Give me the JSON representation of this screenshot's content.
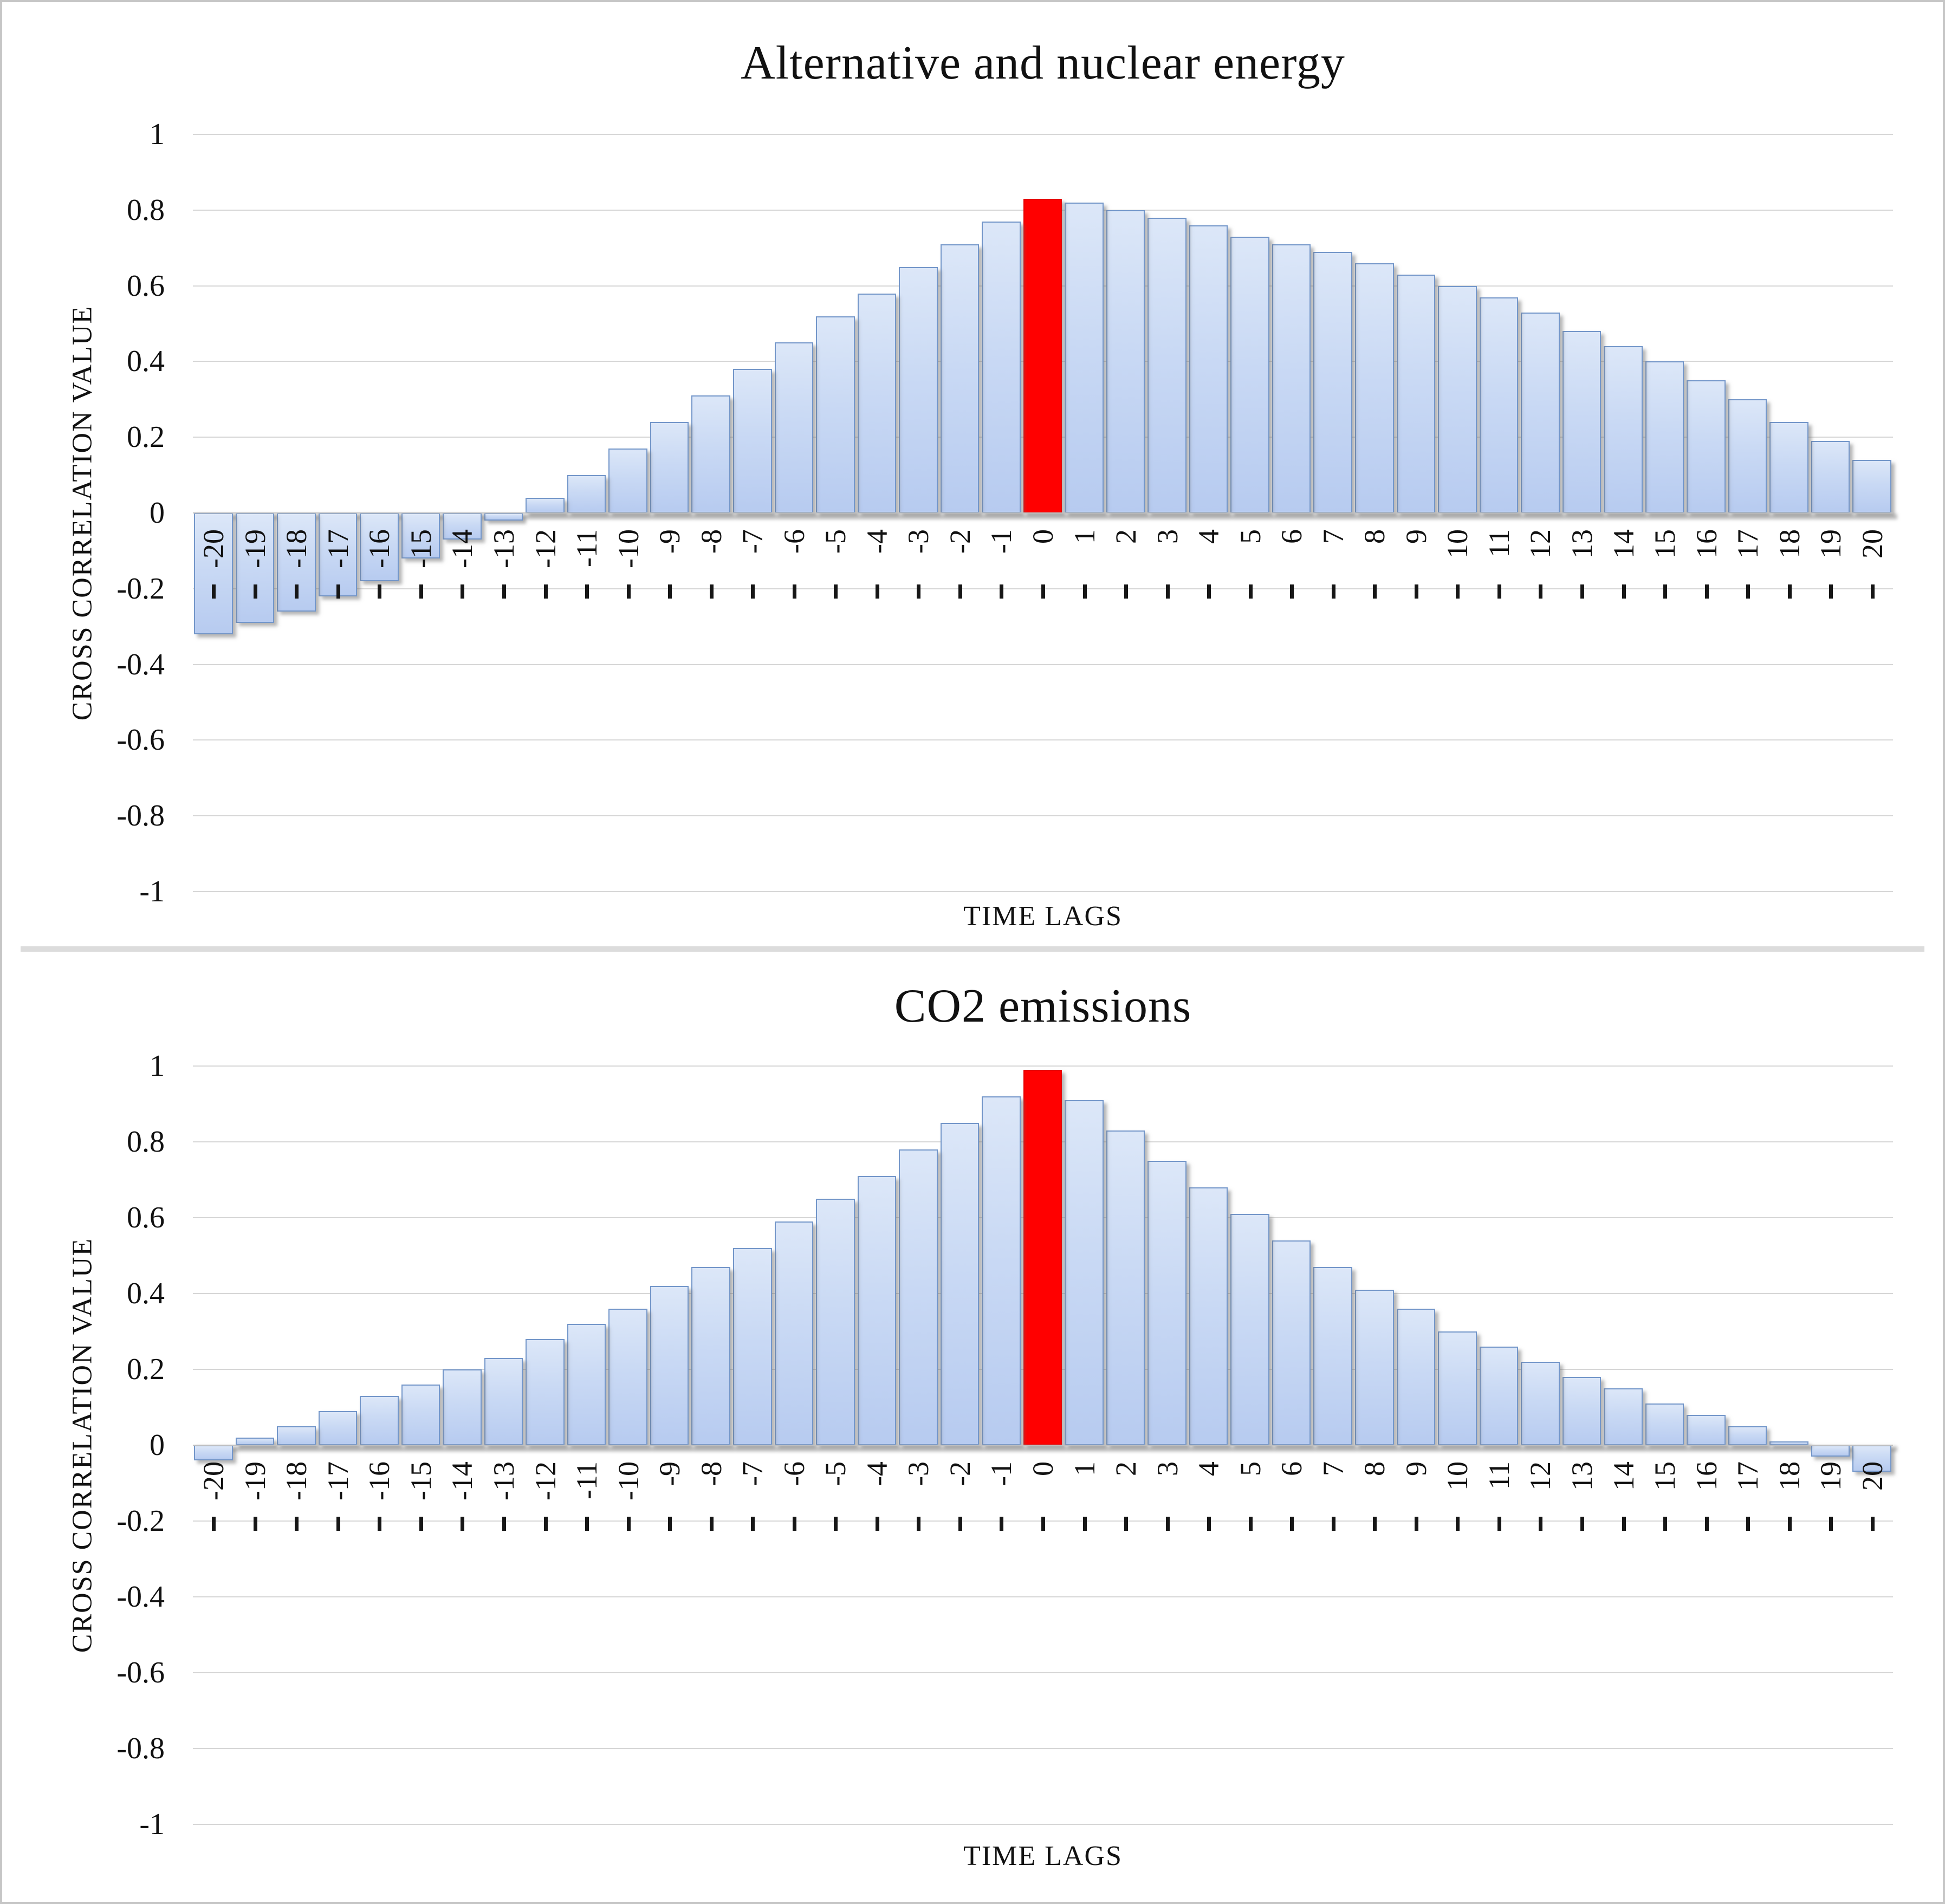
{
  "figure": {
    "background": "#ffffff",
    "frame_color": "#c6c6c6",
    "divider_color": "#dcdcdc"
  },
  "colors": {
    "bar_fill_light": "#dce7f8",
    "bar_fill_dark": "#b7cbf0",
    "bar_border": "#7396c9",
    "highlight_bar": "#ff0000",
    "gridline": "#d6d6d6",
    "text": "#111111"
  },
  "chart_data": [
    {
      "type": "bar",
      "title": "Alternative and nuclear energy",
      "xlabel": "TIME LAGS",
      "ylabel": "CROSS CORRELATION VALUE",
      "ylim": [
        -1,
        1
      ],
      "ytick_labels": [
        "1",
        "0.8",
        "0.6",
        "0.4",
        "0.2",
        "0",
        "-0.2",
        "-0.4",
        "-0.6",
        "-0.8",
        "-1"
      ],
      "ytick_values": [
        1,
        0.8,
        0.6,
        0.4,
        0.2,
        0,
        -0.2,
        -0.4,
        -0.6,
        -0.8,
        -1
      ],
      "grid": true,
      "legend": "none",
      "highlight_category": 0,
      "categories": [
        -20,
        -19,
        -18,
        -17,
        -16,
        -15,
        -14,
        -13,
        -12,
        -11,
        -10,
        -9,
        -8,
        -7,
        -6,
        -5,
        -4,
        -3,
        -2,
        -1,
        0,
        1,
        2,
        3,
        4,
        5,
        6,
        7,
        8,
        9,
        10,
        11,
        12,
        13,
        14,
        15,
        16,
        17,
        18,
        19,
        20
      ],
      "values": [
        -0.32,
        -0.29,
        -0.26,
        -0.22,
        -0.18,
        -0.12,
        -0.07,
        -0.02,
        0.04,
        0.1,
        0.17,
        0.24,
        0.31,
        0.38,
        0.45,
        0.52,
        0.58,
        0.65,
        0.71,
        0.77,
        0.83,
        0.82,
        0.8,
        0.78,
        0.76,
        0.73,
        0.71,
        0.69,
        0.66,
        0.63,
        0.6,
        0.57,
        0.53,
        0.48,
        0.44,
        0.4,
        0.35,
        0.3,
        0.24,
        0.19,
        0.14
      ]
    },
    {
      "type": "bar",
      "title": "CO2 emissions",
      "xlabel": "TIME LAGS",
      "ylabel": "CROSS CORRELATION VALUE",
      "ylim": [
        -1,
        1
      ],
      "ytick_labels": [
        "1",
        "0.8",
        "0.6",
        "0.4",
        "0.2",
        "0",
        "-0.2",
        "-0.4",
        "-0.6",
        "-0.8",
        "-1"
      ],
      "ytick_values": [
        1,
        0.8,
        0.6,
        0.4,
        0.2,
        0,
        -0.2,
        -0.4,
        -0.6,
        -0.8,
        -1
      ],
      "grid": true,
      "legend": "none",
      "highlight_category": 0,
      "categories": [
        -20,
        -19,
        -18,
        -17,
        -16,
        -15,
        -14,
        -13,
        -12,
        -11,
        -10,
        -9,
        -8,
        -7,
        -6,
        -5,
        -4,
        -3,
        -2,
        -1,
        0,
        1,
        2,
        3,
        4,
        5,
        6,
        7,
        8,
        9,
        10,
        11,
        12,
        13,
        14,
        15,
        16,
        17,
        18,
        19,
        20
      ],
      "values": [
        -0.04,
        0.02,
        0.05,
        0.09,
        0.13,
        0.16,
        0.2,
        0.23,
        0.28,
        0.32,
        0.36,
        0.42,
        0.47,
        0.52,
        0.59,
        0.65,
        0.71,
        0.78,
        0.85,
        0.92,
        0.99,
        0.91,
        0.83,
        0.75,
        0.68,
        0.61,
        0.54,
        0.47,
        0.41,
        0.36,
        0.3,
        0.26,
        0.22,
        0.18,
        0.15,
        0.11,
        0.08,
        0.05,
        0.01,
        -0.03,
        -0.07
      ]
    }
  ]
}
